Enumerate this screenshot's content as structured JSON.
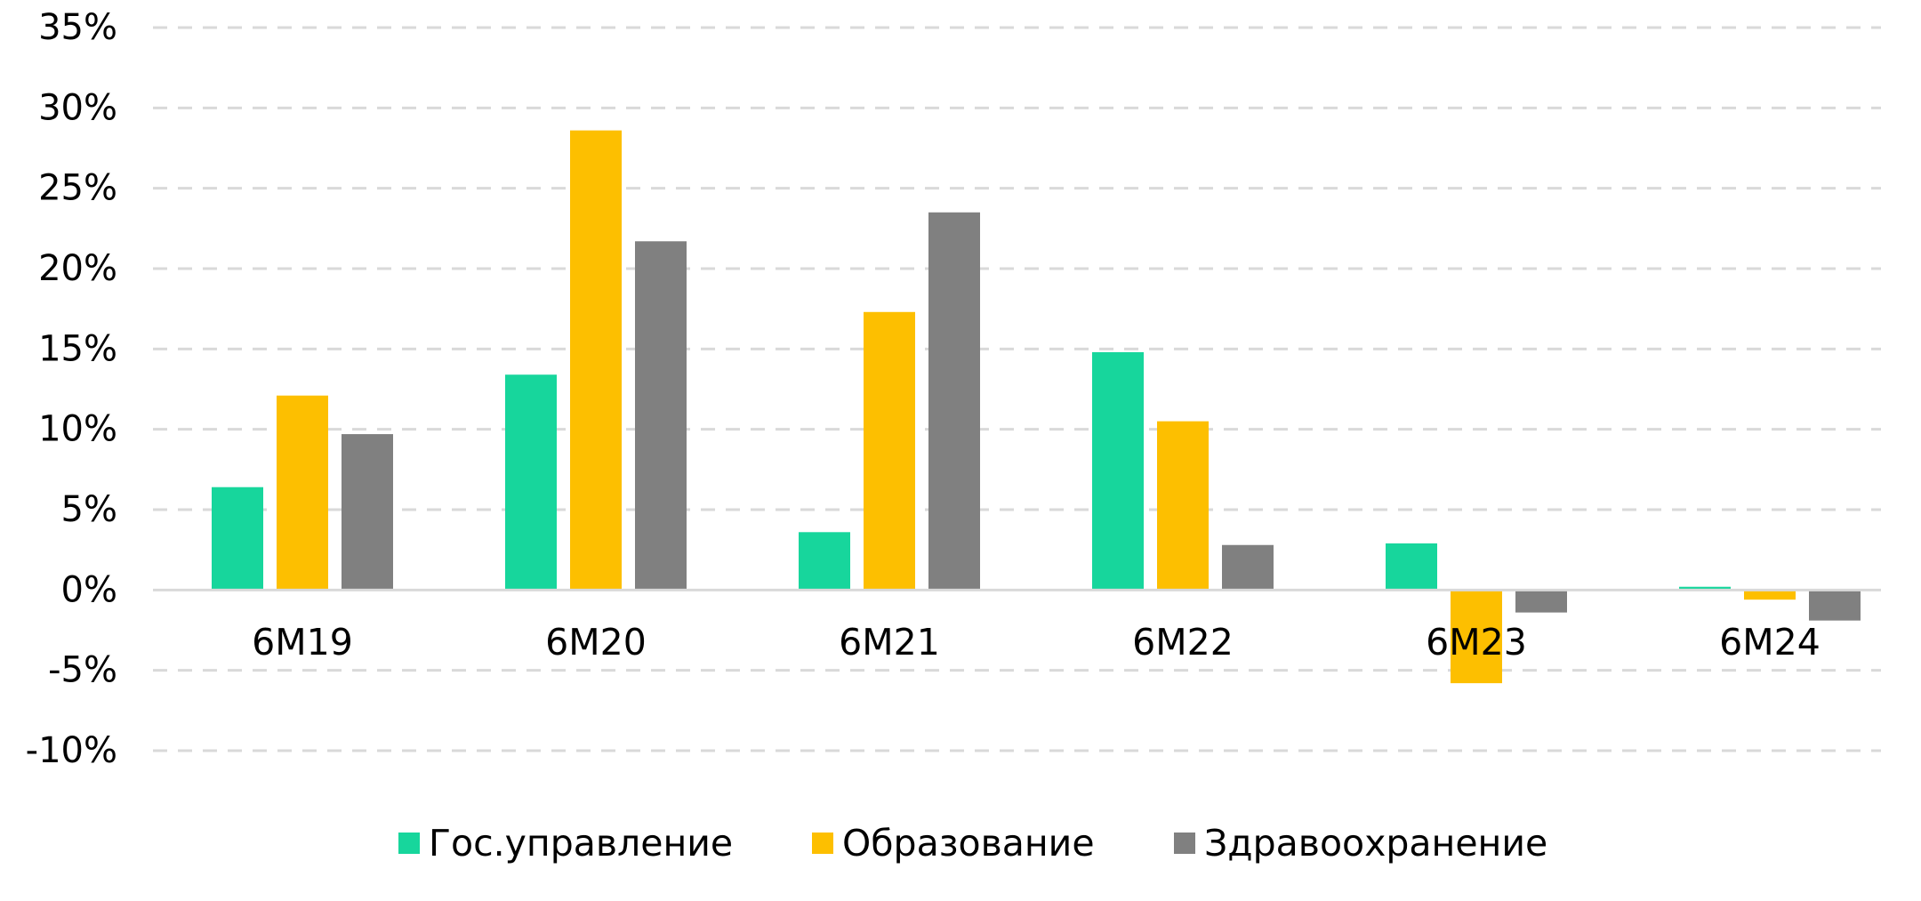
{
  "chart_data": {
    "type": "bar",
    "categories": [
      "6M19",
      "6M20",
      "6M21",
      "6M22",
      "6M23",
      "6M24"
    ],
    "series": [
      {
        "name": "Гос.управление",
        "color": "#17d69c",
        "values": [
          6.4,
          13.4,
          3.6,
          14.8,
          2.9,
          0.2
        ]
      },
      {
        "name": "Образование",
        "color": "#fdbf00",
        "values": [
          12.1,
          28.6,
          17.3,
          10.5,
          -5.8,
          -0.6
        ]
      },
      {
        "name": "Здравоохранение",
        "color": "#808080",
        "values": [
          9.7,
          21.7,
          23.5,
          2.8,
          -1.4,
          -1.9
        ]
      }
    ],
    "yticks": [
      "35%",
      "30%",
      "25%",
      "20%",
      "15%",
      "10%",
      "5%",
      "0%",
      "-5%",
      "-10%"
    ],
    "ylim": [
      -10,
      35
    ],
    "ytick_step": 5,
    "grid": true,
    "legend_position": "bottom",
    "title": "",
    "xlabel": "",
    "ylabel": ""
  }
}
